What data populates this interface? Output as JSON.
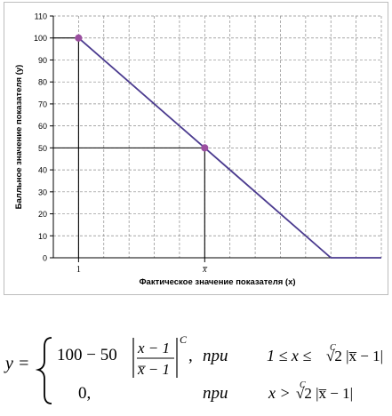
{
  "chart_data": {
    "type": "line",
    "title": "",
    "xlabel": "Фактическое значение показателя (x)",
    "ylabel": "Балльное значение показателя (y)",
    "ylim": [
      0,
      110
    ],
    "yticks": [
      0,
      10,
      20,
      30,
      40,
      50,
      60,
      70,
      80,
      90,
      100,
      110
    ],
    "xlim": [
      0,
      13
    ],
    "xticks": [
      {
        "x": 1,
        "label": "1"
      },
      {
        "x": 6,
        "label": "x̅"
      }
    ],
    "grid": "dashed",
    "series": [
      {
        "color": "#4b3b8f",
        "points": [
          [
            1,
            100
          ],
          [
            6,
            50
          ],
          [
            11,
            0
          ],
          [
            13,
            0
          ]
        ]
      }
    ],
    "markers": [
      {
        "x": 1,
        "y": 100,
        "color": "#9b4fa0"
      },
      {
        "x": 6,
        "y": 50,
        "color": "#9b4fa0"
      }
    ],
    "reference_lines": [
      {
        "from": [
          0,
          100
        ],
        "to": [
          1,
          100
        ]
      },
      {
        "from": [
          1,
          100
        ],
        "to": [
          1,
          0
        ]
      },
      {
        "from": [
          0,
          50
        ],
        "to": [
          6,
          50
        ]
      },
      {
        "from": [
          6,
          50
        ],
        "to": [
          6,
          0
        ]
      }
    ]
  },
  "formula": {
    "lhs": "y =",
    "case1_value": "100 − 50",
    "case1_num": "x − 1",
    "case1_den": "x̅ − 1",
    "case1_exp": "C",
    "case1_comma": ",",
    "case1_when": "при",
    "case1_cond_left": "1 ≤ x ≤",
    "case1_cond_root_index": "C",
    "case1_cond_right": "√2 |x̅ − 1|",
    "case2_value": "0,",
    "case2_when": "при",
    "case2_cond_left": "x >",
    "case2_cond_root_index": "C",
    "case2_cond_right": "√2 |x̅ − 1|"
  }
}
